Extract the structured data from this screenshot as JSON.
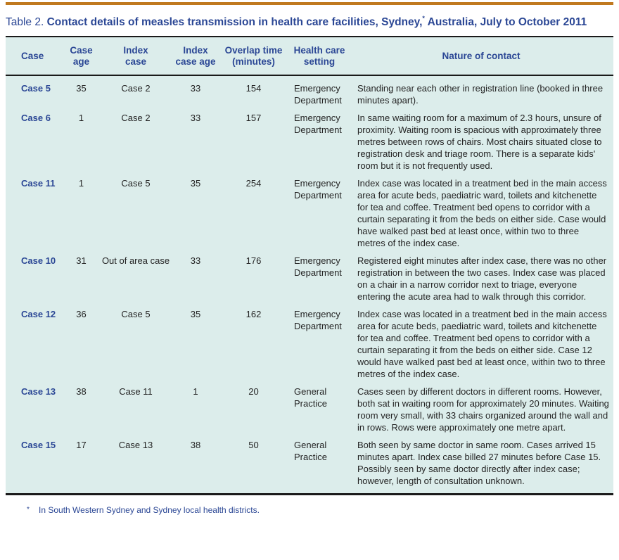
{
  "title": {
    "label": "Table 2.",
    "caption_before_asterisk": "Contact details of measles transmission in health care facilities, Sydney,",
    "asterisk": "*",
    "caption_after_asterisk": " Australia, July to October 2011"
  },
  "columns": [
    {
      "id": "case",
      "label": "Case"
    },
    {
      "id": "case_age",
      "label": "Case\nage"
    },
    {
      "id": "index_case",
      "label": "Index\ncase"
    },
    {
      "id": "index_case_age",
      "label": "Index\ncase age"
    },
    {
      "id": "overlap_minutes",
      "label": "Overlap time\n(minutes)"
    },
    {
      "id": "setting",
      "label": "Health care\nsetting"
    },
    {
      "id": "nature",
      "label": "Nature of contact"
    }
  ],
  "rows": [
    {
      "case": "Case 5",
      "case_age": "35",
      "index_case": "Case 2",
      "index_case_age": "33",
      "overlap_minutes": "154",
      "setting": "Emergency Department",
      "nature": "Standing near each other in registration line (booked in three minutes apart)."
    },
    {
      "case": "Case 6",
      "case_age": "1",
      "index_case": "Case 2",
      "index_case_age": "33",
      "overlap_minutes": "157",
      "setting": "Emergency Department",
      "nature": "In same waiting room for a maximum of 2.3 hours, unsure of proximity. Waiting room is spacious with approximately three metres between rows of chairs. Most chairs situated close to registration desk and triage room. There is a separate kids' room but it is not frequently used."
    },
    {
      "case": "Case 11",
      "case_age": "1",
      "index_case": "Case 5",
      "index_case_age": "35",
      "overlap_minutes": "254",
      "setting": "Emergency Department",
      "nature": "Index case was located in a treatment bed in the main access area for acute beds, paediatric ward, toilets and kitchenette for tea and coffee. Treatment bed opens to corridor with a curtain separating it from the beds on either side. Case would have walked past bed at least once, within two to three metres of the index case."
    },
    {
      "case": "Case 10",
      "case_age": "31",
      "index_case": "Out of area case",
      "index_case_age": "33",
      "overlap_minutes": "176",
      "setting": "Emergency Department",
      "nature": "Registered eight minutes after index case, there was no other registration in between the two cases. Index case was placed on a chair in a narrow corridor next to triage, everyone entering the acute area had to walk through this corridor."
    },
    {
      "case": "Case 12",
      "case_age": "36",
      "index_case": "Case 5",
      "index_case_age": "35",
      "overlap_minutes": "162",
      "setting": "Emergency Department",
      "nature": "Index case was located in a treatment bed in the main access area for acute beds, paediatric ward, toilets and kitchenette for tea and coffee. Treatment bed opens to corridor with a curtain separating it from the beds on either side. Case 12 would have walked past bed at least once, within two to three metres of the index case."
    },
    {
      "case": "Case 13",
      "case_age": "38",
      "index_case": "Case 11",
      "index_case_age": "1",
      "overlap_minutes": "20",
      "setting": "General Practice",
      "nature": "Cases seen by different doctors in different rooms. However, both sat in waiting room for approximately 20 minutes. Waiting room very small, with 33 chairs organized around the wall and in rows. Rows were approximately one metre apart."
    },
    {
      "case": "Case 15",
      "case_age": "17",
      "index_case": "Case 13",
      "index_case_age": "38",
      "overlap_minutes": "50",
      "setting": "General Practice",
      "nature": "Both seen by same doctor in same room. Cases arrived 15 minutes apart. Index case billed 27 minutes before Case 15. Possibly seen by same doctor directly after index case; however, length of consultation unknown."
    }
  ],
  "footnote": {
    "marker": "*",
    "text": "In South Western Sydney and Sydney local health districts."
  },
  "colors": {
    "accent_orange": "#c0791f",
    "heading_blue": "#2b4795",
    "table_background": "#dcedeb",
    "body_text": "#242424",
    "rule_black": "#1a1a1a"
  }
}
